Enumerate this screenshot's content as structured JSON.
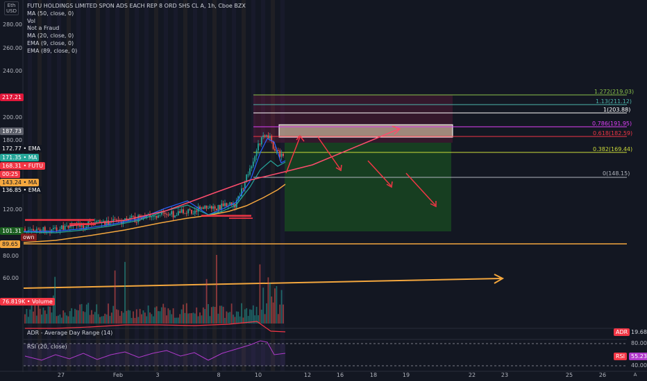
{
  "currency_box": {
    "line1": "Eth",
    "line2": "USD"
  },
  "legend": {
    "title": "FUTU HOLDINGS LIMITED SPON ADS EACH REP 8 ORD SHS CL A, 1h, Cboe BZX",
    "lines": [
      "MA (50, close, 0)",
      "Vol",
      "Not a Fraud",
      "MA (20, close, 0)",
      "EMA (9, close, 0)",
      "EMA (89, close, 0)"
    ]
  },
  "y_ticks": [
    "280.00",
    "260.00",
    "240.00",
    "200.00",
    "180.00",
    "120.00",
    "80.00",
    "60.00"
  ],
  "x_ticks": [
    "27",
    "Feb",
    "3",
    "8",
    "10",
    "12",
    "16",
    "18",
    "19",
    "22",
    "23",
    "25",
    "26"
  ],
  "price_badges": [
    {
      "label": "217.21",
      "bg": "#e0173a",
      "fg": "#ffffff"
    },
    {
      "label": "187.73",
      "bg": "#5d606b",
      "fg": "#ffffff"
    },
    {
      "label": "172.77 • EMA",
      "bg": "#131722",
      "fg": "#ffffff"
    },
    {
      "label": "171.35 • MA",
      "bg": "#26a69a",
      "fg": "#ffffff"
    },
    {
      "label": "168.31 • FUTU",
      "bg": "#f23645",
      "fg": "#ffffff"
    },
    {
      "label": "00:25",
      "bg": "#f23645",
      "fg": "#ffffff"
    },
    {
      "label": "143.24 • MA",
      "bg": "#f4a73e",
      "fg": "#131722"
    },
    {
      "label": "136.85 • EMA",
      "bg": "#131722",
      "fg": "#ffffff"
    },
    {
      "label": "101.31",
      "bg": "#1b5e20",
      "fg": "#ffffff"
    },
    {
      "label": "own",
      "bg": "#7f1d1d",
      "fg": "#ffffff"
    },
    {
      "label": "89.65",
      "bg": "#f4a73e",
      "fg": "#131722"
    },
    {
      "label": "76.819K • Volume",
      "bg": "#f23645",
      "fg": "#ffffff"
    }
  ],
  "fib_levels": [
    {
      "label": "1.272(219.03)",
      "color": "#8bc34a"
    },
    {
      "label": "1.13(211.12)",
      "color": "#4db6ac"
    },
    {
      "label": "1(203.88)",
      "color": "#ffffff"
    },
    {
      "label": "0.786(191.95)",
      "color": "#e040fb"
    },
    {
      "label": "0.618(182.59)",
      "color": "#f23645"
    },
    {
      "label": "0.382(169.44)",
      "color": "#cddc39"
    },
    {
      "label": "0(148.15)",
      "color": "#b2b5be"
    }
  ],
  "indicators": {
    "adr_title": "ADR - Average Day Range (14)",
    "rsi_title": "RSI (20, close)",
    "adr_badge": "ADR",
    "adr_value": "19.68",
    "rsi_badge": "RSI",
    "rsi_value": "55.23",
    "rsi_axis_top": "80.00",
    "rsi_axis_bottom": "40.00"
  },
  "colors": {
    "background": "#131722",
    "up": "#26a69a",
    "down": "#ef5350",
    "ma20": "#f4a73e",
    "ema9": "#2962ff",
    "trend": "#ff4d6d"
  }
}
